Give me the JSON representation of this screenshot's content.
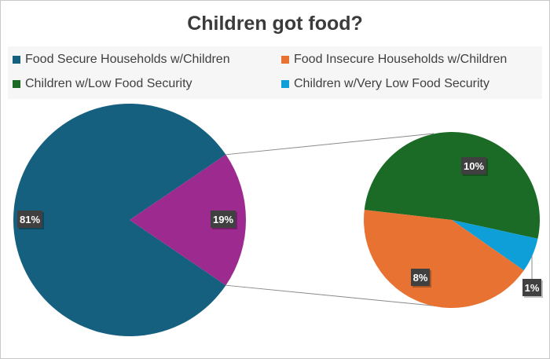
{
  "chart_data": {
    "type": "pie-of-pie",
    "title": "Children got food?",
    "legend_position": "top",
    "main_pie": {
      "slices": [
        {
          "name": "Food Secure Households w/Children",
          "value": 81,
          "label": "81%",
          "color": "#155F7F"
        },
        {
          "name": "",
          "value": 19,
          "label": "19%",
          "color": "#9C2A8F"
        }
      ]
    },
    "secondary_pie": {
      "slices": [
        {
          "name": "Children w/Low Food Security",
          "value": 9.8,
          "label": "10%",
          "color": "#1B6B27"
        },
        {
          "name": "Children w/Very Low Food Security",
          "value": 1.2,
          "label": "1%",
          "color": "#0E9FD8"
        },
        {
          "name": "Food Insecure Households w/Children",
          "value": 8.0,
          "label": "8%",
          "color": "#E87232"
        }
      ]
    },
    "legend": [
      {
        "label": "Food Secure Households w/Children",
        "color": "#155F7F"
      },
      {
        "label": "Food Insecure Households w/Children",
        "color": "#E87232"
      },
      {
        "label": "Children w/Low Food Security",
        "color": "#1B6B27"
      },
      {
        "label": "Children w/Very Low Food Security",
        "color": "#0E9FD8"
      }
    ]
  }
}
